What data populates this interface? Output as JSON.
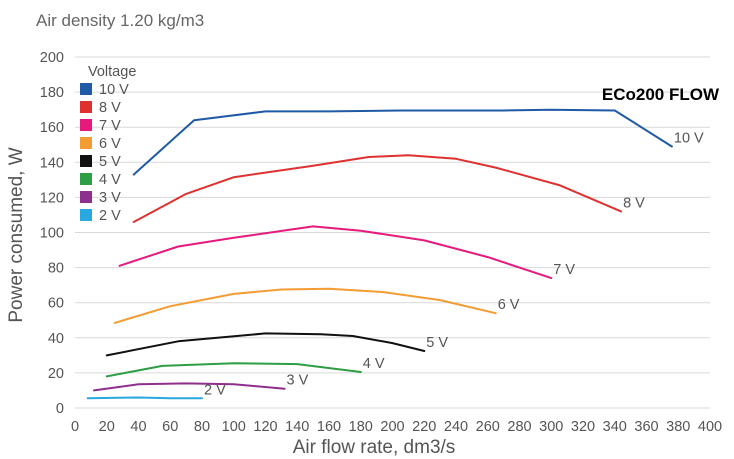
{
  "chart_data": {
    "type": "line",
    "subtitle": "Air density 1.20 kg/m3",
    "model_title": "ECo200 FLOW",
    "xlabel": "Air flow rate, dm3/s",
    "ylabel": "Power consumed, W",
    "xlim": [
      0,
      400
    ],
    "ylim": [
      0,
      200
    ],
    "x_ticks": [
      "0",
      "20",
      "40",
      "60",
      "80",
      "100",
      "120",
      "140",
      "160",
      "180",
      "200",
      "220",
      "240",
      "260",
      "280",
      "300",
      "320",
      "340",
      "360",
      "380",
      "400"
    ],
    "y_ticks": [
      "0",
      "20",
      "40",
      "60",
      "80",
      "100",
      "120",
      "140",
      "160",
      "180",
      "200"
    ],
    "grid": "horizontal",
    "legend": {
      "title": "Voltage",
      "position": "top-left"
    },
    "series": [
      {
        "name": "10 V",
        "end_label": "10 V",
        "color": "#1f5aa6",
        "points": [
          [
            37,
            133
          ],
          [
            75,
            164
          ],
          [
            120,
            169
          ],
          [
            160,
            169
          ],
          [
            205,
            169.5
          ],
          [
            240,
            169.5
          ],
          [
            270,
            169.5
          ],
          [
            300,
            170
          ],
          [
            340,
            169.5
          ],
          [
            376,
            149
          ]
        ]
      },
      {
        "name": "8 V",
        "end_label": "8 V",
        "color": "#e03131",
        "points": [
          [
            37,
            106
          ],
          [
            70,
            122
          ],
          [
            100,
            131.5
          ],
          [
            150,
            138
          ],
          [
            185,
            143
          ],
          [
            210,
            144
          ],
          [
            240,
            142
          ],
          [
            265,
            137
          ],
          [
            305,
            127
          ],
          [
            344,
            112
          ]
        ]
      },
      {
        "name": "7 V",
        "end_label": "7 V",
        "color": "#e8197d",
        "points": [
          [
            28,
            81
          ],
          [
            65,
            92
          ],
          [
            100,
            97
          ],
          [
            150,
            103.5
          ],
          [
            180,
            101
          ],
          [
            220,
            95.5
          ],
          [
            260,
            86
          ],
          [
            300,
            74
          ]
        ]
      },
      {
        "name": "6 V",
        "end_label": "6 V",
        "color": "#f39c33",
        "points": [
          [
            25,
            48.5
          ],
          [
            60,
            58
          ],
          [
            100,
            65
          ],
          [
            130,
            67.5
          ],
          [
            160,
            68
          ],
          [
            195,
            66
          ],
          [
            230,
            61.5
          ],
          [
            265,
            54
          ]
        ]
      },
      {
        "name": "5 V",
        "end_label": "5 V",
        "color": "#111111",
        "points": [
          [
            20,
            30
          ],
          [
            65,
            38
          ],
          [
            120,
            42.5
          ],
          [
            155,
            42
          ],
          [
            175,
            41
          ],
          [
            200,
            37
          ],
          [
            220,
            32.5
          ]
        ]
      },
      {
        "name": "4 V",
        "end_label": "4 V",
        "color": "#2e9e44",
        "points": [
          [
            20,
            18
          ],
          [
            55,
            24
          ],
          [
            100,
            25.5
          ],
          [
            140,
            25
          ],
          [
            180,
            20.5
          ]
        ]
      },
      {
        "name": "3 V",
        "end_label": "3 V",
        "color": "#8e2f8e",
        "points": [
          [
            12,
            10
          ],
          [
            40,
            13.5
          ],
          [
            70,
            14
          ],
          [
            100,
            13.5
          ],
          [
            132,
            11
          ]
        ]
      },
      {
        "name": "2 V",
        "end_label": "2 V",
        "color": "#29a8df",
        "points": [
          [
            8,
            5.5
          ],
          [
            40,
            6
          ],
          [
            60,
            5.5
          ],
          [
            80,
            5.5
          ]
        ]
      }
    ]
  }
}
